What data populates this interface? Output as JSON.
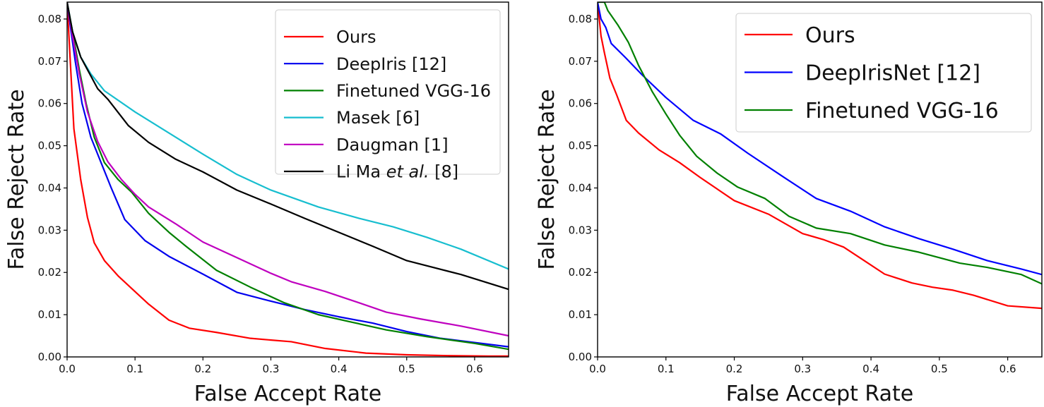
{
  "chart_data": [
    {
      "type": "line",
      "title": "",
      "xlabel": "False Accept Rate",
      "ylabel": "False Reject Rate",
      "xlim": [
        0,
        0.65
      ],
      "ylim": [
        0,
        0.084
      ],
      "xticks": [
        0.0,
        0.1,
        0.2,
        0.3,
        0.4,
        0.5,
        0.6
      ],
      "xtick_labels": [
        "0.0",
        "0.1",
        "0.2",
        "0.3",
        "0.4",
        "0.5",
        "0.6"
      ],
      "yticks": [
        0.0,
        0.01,
        0.02,
        0.03,
        0.04,
        0.05,
        0.06,
        0.07,
        0.08
      ],
      "ytick_labels": [
        "0.00",
        "0.01",
        "0.02",
        "0.03",
        "0.04",
        "0.05",
        "0.06",
        "0.07",
        "0.08"
      ],
      "grid": false,
      "legend": "top-right",
      "series": [
        {
          "name": "Ours",
          "label_main": "Ours",
          "label_italic": "",
          "label_suffix": "",
          "color": "#ff0000",
          "x": [
            0.0,
            0.004,
            0.01,
            0.02,
            0.03,
            0.04,
            0.055,
            0.075,
            0.095,
            0.12,
            0.15,
            0.18,
            0.22,
            0.27,
            0.33,
            0.38,
            0.44,
            0.5,
            0.56,
            0.62,
            0.65
          ],
          "y": [
            0.084,
            0.072,
            0.054,
            0.042,
            0.033,
            0.027,
            0.0228,
            0.0192,
            0.0162,
            0.0125,
            0.0087,
            0.0068,
            0.0058,
            0.0044,
            0.0036,
            0.002,
            0.0009,
            0.0005,
            0.0003,
            0.0002,
            0.0002
          ]
        },
        {
          "name": "DeepIris [12]",
          "label_main": "DeepIris [12]",
          "label_italic": "",
          "label_suffix": "",
          "color": "#0000ee",
          "x": [
            0.0,
            0.005,
            0.012,
            0.022,
            0.035,
            0.05,
            0.065,
            0.085,
            0.115,
            0.15,
            0.2,
            0.25,
            0.3,
            0.35,
            0.4,
            0.45,
            0.5,
            0.55,
            0.6,
            0.65
          ],
          "y": [
            0.084,
            0.078,
            0.07,
            0.06,
            0.052,
            0.046,
            0.04,
            0.0325,
            0.0275,
            0.0238,
            0.0196,
            0.0153,
            0.0132,
            0.0112,
            0.0095,
            0.008,
            0.006,
            0.0044,
            0.0034,
            0.0024
          ]
        },
        {
          "name": "Finetuned VGG-16",
          "label_main": "Finetuned VGG-16",
          "label_italic": "",
          "label_suffix": "",
          "color": "#008000",
          "x": [
            0.0,
            0.008,
            0.018,
            0.028,
            0.04,
            0.055,
            0.075,
            0.095,
            0.12,
            0.15,
            0.175,
            0.22,
            0.27,
            0.32,
            0.37,
            0.42,
            0.47,
            0.53,
            0.6,
            0.65
          ],
          "y": [
            0.084,
            0.077,
            0.068,
            0.06,
            0.052,
            0.046,
            0.042,
            0.039,
            0.034,
            0.0295,
            0.0262,
            0.0205,
            0.0165,
            0.0128,
            0.01,
            0.0082,
            0.0064,
            0.0048,
            0.0032,
            0.0018
          ]
        },
        {
          "name": "Masek [6]",
          "label_main": "Masek [6]",
          "label_italic": "",
          "label_suffix": "",
          "color": "#17becf",
          "x": [
            0.0,
            0.008,
            0.02,
            0.035,
            0.055,
            0.1,
            0.165,
            0.2,
            0.25,
            0.3,
            0.37,
            0.43,
            0.48,
            0.53,
            0.58,
            0.65
          ],
          "y": [
            0.084,
            0.077,
            0.071,
            0.067,
            0.063,
            0.058,
            0.0515,
            0.048,
            0.0432,
            0.0395,
            0.0355,
            0.0328,
            0.0308,
            0.0283,
            0.0255,
            0.0208
          ]
        },
        {
          "name": "Daugman [1]",
          "label_main": "Daugman [1]",
          "label_italic": "",
          "label_suffix": "",
          "color": "#bf00bf",
          "x": [
            0.0,
            0.008,
            0.018,
            0.03,
            0.045,
            0.06,
            0.08,
            0.1,
            0.12,
            0.16,
            0.2,
            0.25,
            0.3,
            0.33,
            0.38,
            0.43,
            0.47,
            0.52,
            0.58,
            0.65
          ],
          "y": [
            0.084,
            0.076,
            0.067,
            0.058,
            0.051,
            0.0462,
            0.042,
            0.0385,
            0.0355,
            0.0315,
            0.0272,
            0.0235,
            0.0198,
            0.0178,
            0.0155,
            0.0128,
            0.0106,
            0.009,
            0.0073,
            0.005
          ]
        },
        {
          "name": "Li Ma et al. [8]",
          "label_main": "Li Ma ",
          "label_italic": "et al.",
          "label_suffix": " [8]",
          "color": "#000000",
          "x": [
            0.0,
            0.008,
            0.02,
            0.03,
            0.045,
            0.06,
            0.09,
            0.12,
            0.16,
            0.2,
            0.25,
            0.3,
            0.35,
            0.4,
            0.45,
            0.5,
            0.58,
            0.65
          ],
          "y": [
            0.084,
            0.077,
            0.071,
            0.068,
            0.0635,
            0.061,
            0.0548,
            0.0508,
            0.0468,
            0.0438,
            0.0395,
            0.0362,
            0.0328,
            0.0295,
            0.0262,
            0.0228,
            0.0195,
            0.016
          ]
        }
      ]
    },
    {
      "type": "line",
      "title": "",
      "xlabel": "False Accept Rate",
      "ylabel": "False Reject Rate",
      "xlim": [
        0,
        0.65
      ],
      "ylim": [
        0,
        0.084
      ],
      "xticks": [
        0.0,
        0.1,
        0.2,
        0.3,
        0.4,
        0.5,
        0.6
      ],
      "xtick_labels": [
        "0.0",
        "0.1",
        "0.2",
        "0.3",
        "0.4",
        "0.5",
        "0.6"
      ],
      "yticks": [
        0.0,
        0.01,
        0.02,
        0.03,
        0.04,
        0.05,
        0.06,
        0.07,
        0.08
      ],
      "ytick_labels": [
        "0.00",
        "0.01",
        "0.02",
        "0.03",
        "0.04",
        "0.05",
        "0.06",
        "0.07",
        "0.08"
      ],
      "grid": false,
      "legend": "top-right",
      "series": [
        {
          "name": "Ours",
          "label_main": "Ours",
          "label_italic": "",
          "label_suffix": "",
          "color": "#ff0000",
          "x": [
            0.0,
            0.005,
            0.01,
            0.018,
            0.028,
            0.042,
            0.06,
            0.09,
            0.12,
            0.15,
            0.2,
            0.25,
            0.3,
            0.33,
            0.36,
            0.39,
            0.42,
            0.46,
            0.49,
            0.52,
            0.55,
            0.6,
            0.65
          ],
          "y": [
            0.084,
            0.076,
            0.072,
            0.066,
            0.062,
            0.056,
            0.053,
            0.049,
            0.046,
            0.0425,
            0.037,
            0.0338,
            0.0292,
            0.0278,
            0.026,
            0.0228,
            0.0196,
            0.0175,
            0.0165,
            0.0158,
            0.0146,
            0.0121,
            0.0115
          ]
        },
        {
          "name": "DeepIrisNet [12]",
          "label_main": "DeepIrisNet [12]",
          "label_italic": "",
          "label_suffix": "",
          "color": "#0000ff",
          "x": [
            0.0,
            0.005,
            0.012,
            0.02,
            0.04,
            0.065,
            0.1,
            0.14,
            0.18,
            0.22,
            0.27,
            0.32,
            0.37,
            0.42,
            0.47,
            0.52,
            0.57,
            0.62,
            0.65
          ],
          "y": [
            0.084,
            0.08,
            0.078,
            0.0742,
            0.071,
            0.0668,
            0.0614,
            0.056,
            0.0528,
            0.0482,
            0.0428,
            0.0375,
            0.0345,
            0.0308,
            0.028,
            0.0255,
            0.0228,
            0.0208,
            0.0195
          ]
        },
        {
          "name": "Finetuned VGG-16",
          "label_main": "Finetuned VGG-16",
          "label_italic": "",
          "label_suffix": "",
          "color": "#008000",
          "x": [
            0.0,
            0.01,
            0.015,
            0.03,
            0.045,
            0.06,
            0.08,
            0.1,
            0.12,
            0.145,
            0.175,
            0.205,
            0.245,
            0.28,
            0.32,
            0.37,
            0.42,
            0.47,
            0.5,
            0.53,
            0.57,
            0.62,
            0.65
          ],
          "y": [
            0.084,
            0.084,
            0.082,
            0.0785,
            0.0745,
            0.069,
            0.0628,
            0.0575,
            0.0525,
            0.0475,
            0.0435,
            0.0402,
            0.0375,
            0.0333,
            0.0305,
            0.0292,
            0.0265,
            0.0248,
            0.0235,
            0.0222,
            0.0212,
            0.0195,
            0.0173
          ]
        }
      ]
    }
  ]
}
